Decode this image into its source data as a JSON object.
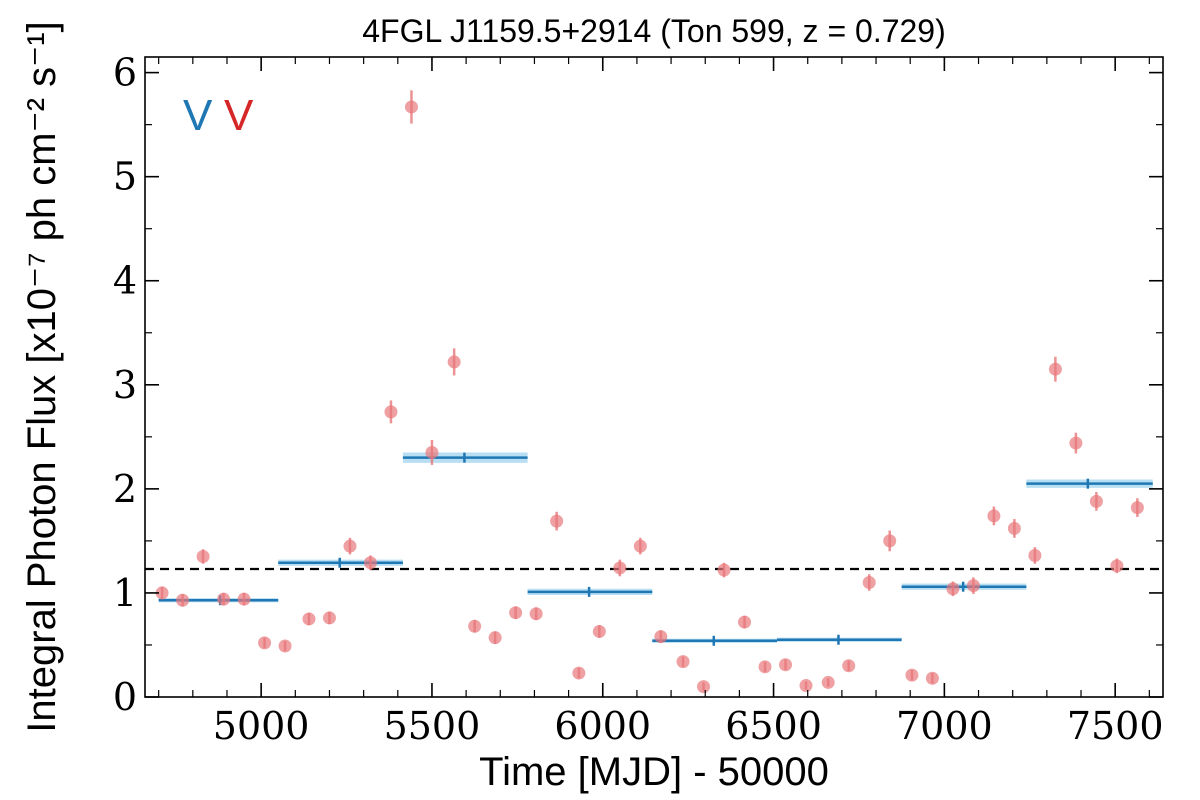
{
  "chart_data": {
    "type": "scatter",
    "title": "4FGL J1159.5+2914 (Ton 599, z = 0.729)",
    "xlabel": "Time [MJD] - 50000",
    "ylabel": "Integral Photon Flux [x10⁻⁷ ph cm⁻² s⁻¹]",
    "xlim": [
      4660,
      7640
    ],
    "ylim": [
      0,
      6.15
    ],
    "xticks": [
      5000,
      5500,
      6000,
      6500,
      7000,
      7500
    ],
    "xtick_labels": [
      "5000",
      "5500",
      "6000",
      "6500",
      "7000",
      "7500"
    ],
    "yticks": [
      0,
      1,
      2,
      3,
      4,
      5,
      6
    ],
    "ytick_labels": [
      "0",
      "1",
      "2",
      "3",
      "4",
      "5",
      "6"
    ],
    "grid": false,
    "variability_flags": [
      {
        "text": "V",
        "color": "#1f77b4"
      },
      {
        "text": "V",
        "color": "#d62728"
      }
    ],
    "mean_flux": 1.23,
    "series": [
      {
        "color": "#e8787a",
        "x": [
          4710,
          4770,
          4830,
          4890,
          4950,
          5010,
          5070,
          5140,
          5200,
          5260,
          5320,
          5380,
          5440,
          5500,
          5565,
          5625,
          5685,
          5745,
          5805,
          5865,
          5930,
          5990,
          6050,
          6110,
          6170,
          6235,
          6295,
          6355,
          6415,
          6475,
          6535,
          6595,
          6660,
          6720,
          6780,
          6840,
          6905,
          6965,
          7025,
          7085,
          7145,
          7205,
          7265,
          7325,
          7385,
          7445,
          7505,
          7565
        ],
        "y": [
          1.0,
          0.93,
          1.35,
          0.94,
          0.94,
          0.52,
          0.49,
          0.75,
          0.76,
          1.45,
          1.29,
          2.74,
          5.67,
          2.35,
          3.22,
          0.68,
          0.57,
          0.81,
          0.8,
          1.69,
          0.23,
          0.63,
          1.24,
          1.45,
          0.58,
          0.34,
          0.1,
          1.22,
          0.72,
          0.29,
          0.31,
          0.11,
          0.14,
          0.3,
          1.1,
          1.5,
          0.21,
          0.18,
          1.04,
          1.07,
          1.74,
          1.62,
          1.36,
          3.15,
          2.44,
          1.88,
          1.26,
          1.82
        ],
        "yerr": [
          0.06,
          0.06,
          0.07,
          0.06,
          0.06,
          0.05,
          0.05,
          0.06,
          0.06,
          0.08,
          0.07,
          0.11,
          0.16,
          0.12,
          0.13,
          0.06,
          0.06,
          0.06,
          0.06,
          0.09,
          0.05,
          0.06,
          0.08,
          0.08,
          0.06,
          0.05,
          0.04,
          0.07,
          0.06,
          0.05,
          0.05,
          0.04,
          0.04,
          0.05,
          0.08,
          0.1,
          0.05,
          0.05,
          0.07,
          0.08,
          0.09,
          0.09,
          0.08,
          0.12,
          0.1,
          0.09,
          0.07,
          0.09
        ]
      },
      {
        "color": "#1f77b4",
        "band_color": "#9fd3ee",
        "x_start": [
          4700,
          5050,
          5415,
          5780,
          6145,
          6510,
          6875,
          7240
        ],
        "x_end": [
          5050,
          5415,
          5780,
          6145,
          6510,
          6875,
          7240,
          7610
        ],
        "x_mid": [
          4880,
          5230,
          5595,
          5960,
          6325,
          6690,
          7055,
          7420
        ],
        "y": [
          0.93,
          1.29,
          2.3,
          1.01,
          0.54,
          0.55,
          1.06,
          2.05
        ],
        "yerr": [
          0.02,
          0.03,
          0.05,
          0.03,
          0.02,
          0.02,
          0.03,
          0.04
        ]
      }
    ]
  }
}
